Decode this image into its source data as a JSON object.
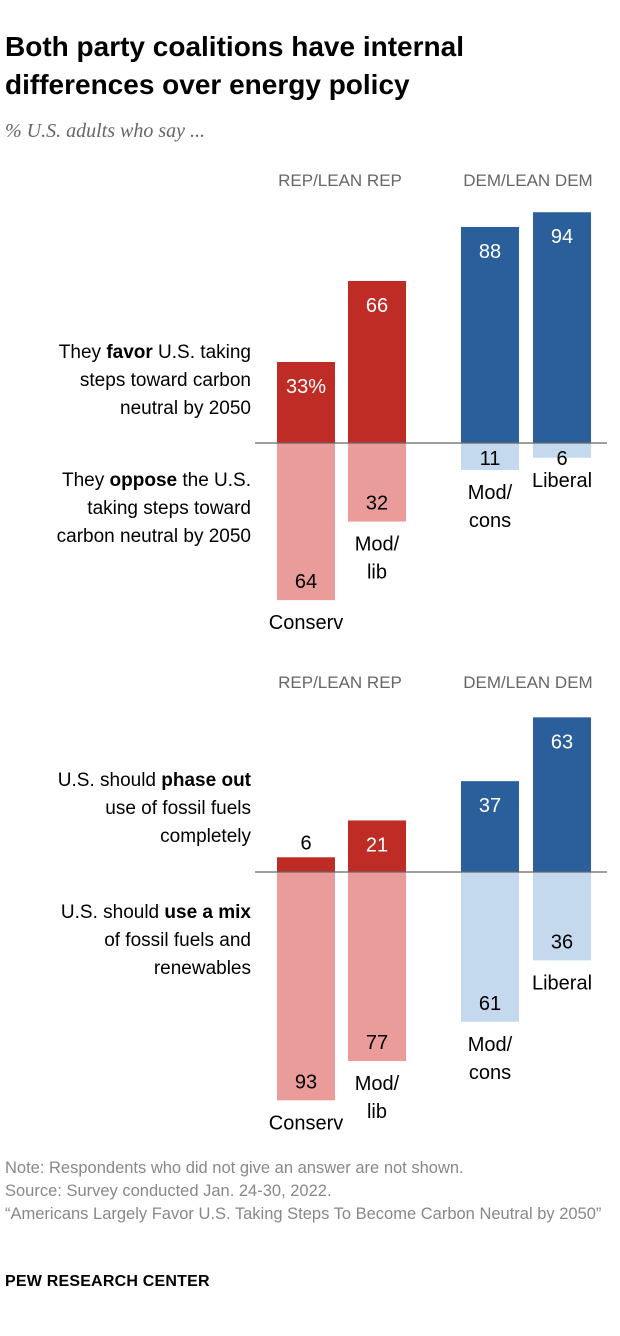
{
  "title": "Both party coalitions have internal differences over energy policy",
  "subtitle": "% U.S. adults who say ...",
  "notes": [
    "Note: Respondents who did not give an answer are not shown.",
    "Source: Survey conducted Jan. 24-30, 2022.",
    "“Americans Largely Favor U.S. Taking Steps To Become Carbon Neutral by 2050”"
  ],
  "brand": "PEW RESEARCH CENTER",
  "colors": {
    "rep_dark": "#be2c25",
    "rep_light": "#ea9c9a",
    "dem_dark": "#2a5f9b",
    "dem_light": "#c5d9ee",
    "baseline": "#666666"
  },
  "chart_data": [
    {
      "type": "bar",
      "stacked": "diverging",
      "group_labels": [
        "REP/LEAN REP",
        "DEM/LEAN DEM"
      ],
      "categories": [
        [
          "Conserv"
        ],
        [
          "Mod/",
          "lib"
        ],
        [
          "Mod/",
          "cons"
        ],
        [
          "Liberal"
        ]
      ],
      "positive": {
        "label": [
          [
            "They ",
            "favor",
            " U.S. taking"
          ],
          [
            "steps toward carbon"
          ],
          [
            "neutral by 2050"
          ]
        ],
        "values": [
          33,
          66,
          88,
          94
        ],
        "value_labels": [
          "33%",
          "66",
          "88",
          "94"
        ]
      },
      "negative": {
        "label": [
          [
            "They ",
            "oppose",
            " the U.S."
          ],
          [
            "taking steps toward"
          ],
          [
            "carbon neutral by 2050"
          ]
        ],
        "values": [
          64,
          32,
          11,
          6
        ],
        "value_labels": [
          "64",
          "32",
          "11",
          "6"
        ]
      }
    },
    {
      "type": "bar",
      "stacked": "diverging",
      "group_labels": [
        "REP/LEAN REP",
        "DEM/LEAN DEM"
      ],
      "categories": [
        [
          "Conserv"
        ],
        [
          "Mod/",
          "lib"
        ],
        [
          "Mod/",
          "cons"
        ],
        [
          "Liberal"
        ]
      ],
      "positive": {
        "label": [
          [
            "U.S. should ",
            "phase out",
            ""
          ],
          [
            "use of fossil fuels"
          ],
          [
            "completely"
          ]
        ],
        "values": [
          6,
          21,
          37,
          63
        ],
        "value_labels": [
          "6",
          "21",
          "37",
          "63"
        ]
      },
      "negative": {
        "label": [
          [
            "U.S. should ",
            "use a mix",
            ""
          ],
          [
            "of fossil fuels and"
          ],
          [
            "renewables"
          ]
        ],
        "values": [
          93,
          77,
          61,
          36
        ],
        "value_labels": [
          "93",
          "77",
          "61",
          "36"
        ]
      }
    }
  ]
}
